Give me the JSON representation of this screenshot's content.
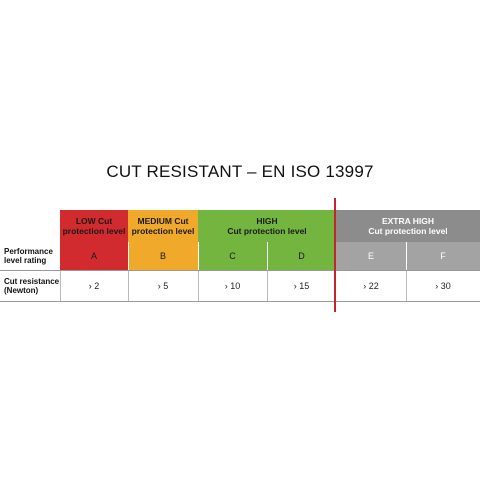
{
  "title": "CUT RESISTANT – EN ISO 13997",
  "headers": {
    "low": "LOW Cut protection level",
    "medium": "MEDIUM Cut protection level",
    "high": "HIGH Cut protection level",
    "extra_high": "EXTRA HIGH Cut protection level"
  },
  "header_lines": {
    "low": [
      "LOW Cut",
      "protection level"
    ],
    "medium": [
      "MEDIUM Cut",
      "protection level"
    ],
    "high": [
      "HIGH",
      "Cut protection level"
    ],
    "extra_high": [
      "EXTRA HIGH",
      "Cut protection level"
    ]
  },
  "row_labels": {
    "performance": [
      "Performance",
      "level rating"
    ],
    "resistance": [
      "Cut resistance",
      "(Newton)"
    ]
  },
  "levels": [
    "A",
    "B",
    "C",
    "D",
    "E",
    "F"
  ],
  "resistance": [
    "› 2",
    "› 5",
    "› 10",
    "› 15",
    "› 22",
    "› 30"
  ],
  "colors": {
    "low": "#d12a2f",
    "medium": "#f0a92a",
    "high": "#73b53f",
    "extra_high_header": "#8c8c8c",
    "extra_high_rating": "#a3a3a3",
    "divider": "#c0272d"
  }
}
